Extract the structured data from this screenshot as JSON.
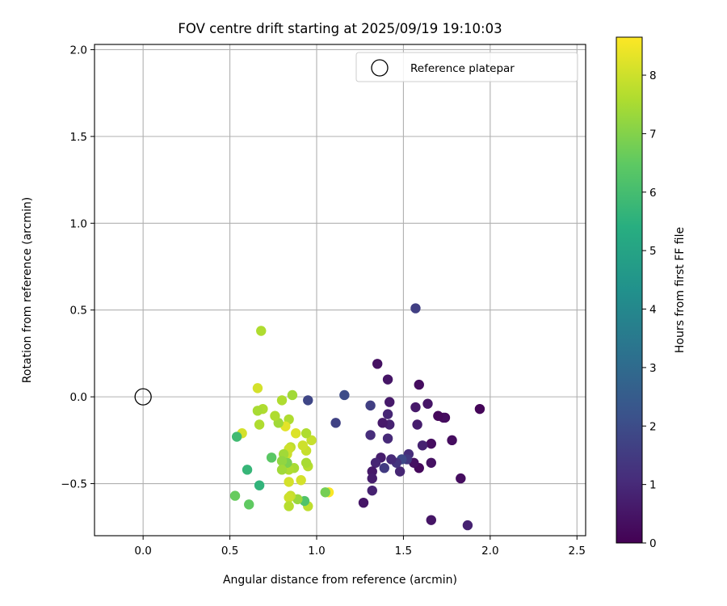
{
  "chart_data": {
    "type": "scatter",
    "title": "FOV centre drift starting at 2025/09/19 19:10:03",
    "xlabel": "Angular distance from reference (arcmin)",
    "ylabel": "Rotation from reference (arcmin)",
    "xlim": [
      -0.28,
      2.55
    ],
    "ylim": [
      -0.8,
      2.03
    ],
    "xticks": [
      0.0,
      0.5,
      1.0,
      1.5,
      2.0,
      2.5
    ],
    "xtick_labels": [
      "0.0",
      "0.5",
      "1.0",
      "1.5",
      "2.0",
      "2.5"
    ],
    "yticks": [
      -0.5,
      0.0,
      0.5,
      1.0,
      1.5,
      2.0
    ],
    "ytick_labels": [
      "−0.5",
      "0.0",
      "0.5",
      "1.0",
      "1.5",
      "2.0"
    ],
    "grid": true,
    "legend": {
      "position": "top-right",
      "label": "Reference platepar"
    },
    "reference": {
      "x": 0.0,
      "y": 0.0
    },
    "colorbar": {
      "label": "Hours from first FF file",
      "range": [
        0,
        8.65
      ],
      "ticks": [
        0,
        1,
        2,
        3,
        4,
        5,
        6,
        7,
        8
      ],
      "tick_labels": [
        "0",
        "1",
        "2",
        "3",
        "4",
        "5",
        "6",
        "7",
        "8"
      ],
      "colormap": "viridis"
    },
    "points": [
      {
        "x": 1.94,
        "y": -0.07,
        "h": 0.1
      },
      {
        "x": 1.87,
        "y": -0.74,
        "h": 0.8
      },
      {
        "x": 1.83,
        "y": -0.47,
        "h": 0.3
      },
      {
        "x": 1.78,
        "y": -0.25,
        "h": 0.3
      },
      {
        "x": 1.74,
        "y": -0.12,
        "h": 0.2
      },
      {
        "x": 1.73,
        "y": -0.12,
        "h": 0.3
      },
      {
        "x": 1.7,
        "y": -0.11,
        "h": 0.2
      },
      {
        "x": 1.66,
        "y": -0.27,
        "h": 0.3
      },
      {
        "x": 1.66,
        "y": -0.38,
        "h": 0.4
      },
      {
        "x": 1.66,
        "y": -0.71,
        "h": 0.5
      },
      {
        "x": 1.64,
        "y": -0.04,
        "h": 0.5
      },
      {
        "x": 1.61,
        "y": -0.28,
        "h": 0.8
      },
      {
        "x": 1.59,
        "y": 0.07,
        "h": 0.3
      },
      {
        "x": 1.59,
        "y": -0.41,
        "h": 0.2
      },
      {
        "x": 1.58,
        "y": -0.16,
        "h": 0.7
      },
      {
        "x": 1.57,
        "y": -0.06,
        "h": 0.6
      },
      {
        "x": 1.57,
        "y": 0.51,
        "h": 1.6
      },
      {
        "x": 1.56,
        "y": -0.38,
        "h": 0.4
      },
      {
        "x": 1.53,
        "y": -0.33,
        "h": 1.1
      },
      {
        "x": 1.52,
        "y": -0.36,
        "h": 1.4
      },
      {
        "x": 1.49,
        "y": -0.36,
        "h": 1.9
      },
      {
        "x": 1.48,
        "y": -0.43,
        "h": 0.9
      },
      {
        "x": 1.46,
        "y": -0.38,
        "h": 1.3
      },
      {
        "x": 1.43,
        "y": -0.36,
        "h": 1.0
      },
      {
        "x": 1.42,
        "y": -0.03,
        "h": 0.6
      },
      {
        "x": 1.42,
        "y": -0.16,
        "h": 0.8
      },
      {
        "x": 1.41,
        "y": -0.1,
        "h": 0.9
      },
      {
        "x": 1.41,
        "y": -0.24,
        "h": 1.0
      },
      {
        "x": 1.41,
        "y": 0.1,
        "h": 0.5
      },
      {
        "x": 1.39,
        "y": -0.41,
        "h": 1.5
      },
      {
        "x": 1.38,
        "y": -0.15,
        "h": 0.6
      },
      {
        "x": 1.37,
        "y": -0.35,
        "h": 0.7
      },
      {
        "x": 1.35,
        "y": 0.19,
        "h": 0.4
      },
      {
        "x": 1.34,
        "y": -0.38,
        "h": 0.9
      },
      {
        "x": 1.32,
        "y": -0.43,
        "h": 0.6
      },
      {
        "x": 1.32,
        "y": -0.47,
        "h": 0.7
      },
      {
        "x": 1.32,
        "y": -0.54,
        "h": 0.8
      },
      {
        "x": 1.31,
        "y": -0.05,
        "h": 1.6
      },
      {
        "x": 1.31,
        "y": -0.22,
        "h": 1.1
      },
      {
        "x": 1.27,
        "y": -0.61,
        "h": 0.5
      },
      {
        "x": 1.16,
        "y": 0.01,
        "h": 2.0
      },
      {
        "x": 1.11,
        "y": -0.15,
        "h": 1.7
      },
      {
        "x": 1.07,
        "y": -0.55,
        "h": 8.6
      },
      {
        "x": 1.05,
        "y": -0.55,
        "h": 6.8
      },
      {
        "x": 0.97,
        "y": -0.25,
        "h": 7.9
      },
      {
        "x": 0.95,
        "y": -0.02,
        "h": 1.8
      },
      {
        "x": 0.95,
        "y": -0.4,
        "h": 7.7
      },
      {
        "x": 0.95,
        "y": -0.63,
        "h": 7.8
      },
      {
        "x": 0.94,
        "y": -0.21,
        "h": 7.6
      },
      {
        "x": 0.94,
        "y": -0.31,
        "h": 7.9
      },
      {
        "x": 0.94,
        "y": -0.38,
        "h": 7.5
      },
      {
        "x": 0.93,
        "y": -0.6,
        "h": 6.2
      },
      {
        "x": 0.92,
        "y": -0.28,
        "h": 8.0
      },
      {
        "x": 0.91,
        "y": -0.48,
        "h": 8.1
      },
      {
        "x": 0.89,
        "y": -0.59,
        "h": 7.3
      },
      {
        "x": 0.88,
        "y": -0.21,
        "h": 8.2
      },
      {
        "x": 0.87,
        "y": -0.41,
        "h": 7.5
      },
      {
        "x": 0.86,
        "y": 0.01,
        "h": 7.4
      },
      {
        "x": 0.85,
        "y": -0.29,
        "h": 7.8
      },
      {
        "x": 0.85,
        "y": -0.57,
        "h": 7.9
      },
      {
        "x": 0.84,
        "y": -0.13,
        "h": 7.6
      },
      {
        "x": 0.84,
        "y": -0.3,
        "h": 8.0
      },
      {
        "x": 0.84,
        "y": -0.42,
        "h": 7.6
      },
      {
        "x": 0.84,
        "y": -0.49,
        "h": 8.1
      },
      {
        "x": 0.84,
        "y": -0.58,
        "h": 8.0
      },
      {
        "x": 0.84,
        "y": -0.63,
        "h": 7.7
      },
      {
        "x": 0.83,
        "y": -0.33,
        "h": 8.0
      },
      {
        "x": 0.83,
        "y": -0.38,
        "h": 6.9
      },
      {
        "x": 0.82,
        "y": -0.17,
        "h": 8.3
      },
      {
        "x": 0.81,
        "y": -0.33,
        "h": 7.4
      },
      {
        "x": 0.8,
        "y": -0.02,
        "h": 7.6
      },
      {
        "x": 0.8,
        "y": -0.37,
        "h": 7.2
      },
      {
        "x": 0.8,
        "y": -0.42,
        "h": 7.4
      },
      {
        "x": 0.78,
        "y": -0.15,
        "h": 7.4
      },
      {
        "x": 0.76,
        "y": -0.11,
        "h": 7.6
      },
      {
        "x": 0.74,
        "y": -0.35,
        "h": 6.4
      },
      {
        "x": 0.69,
        "y": -0.07,
        "h": 7.6
      },
      {
        "x": 0.68,
        "y": 0.38,
        "h": 7.6
      },
      {
        "x": 0.67,
        "y": -0.51,
        "h": 5.6
      },
      {
        "x": 0.67,
        "y": -0.16,
        "h": 7.6
      },
      {
        "x": 0.66,
        "y": 0.05,
        "h": 8.1
      },
      {
        "x": 0.66,
        "y": -0.08,
        "h": 7.5
      },
      {
        "x": 0.61,
        "y": -0.62,
        "h": 6.5
      },
      {
        "x": 0.6,
        "y": -0.42,
        "h": 5.7
      },
      {
        "x": 0.57,
        "y": -0.21,
        "h": 8.1
      },
      {
        "x": 0.54,
        "y": -0.23,
        "h": 5.9
      },
      {
        "x": 0.53,
        "y": -0.57,
        "h": 6.6
      }
    ]
  }
}
